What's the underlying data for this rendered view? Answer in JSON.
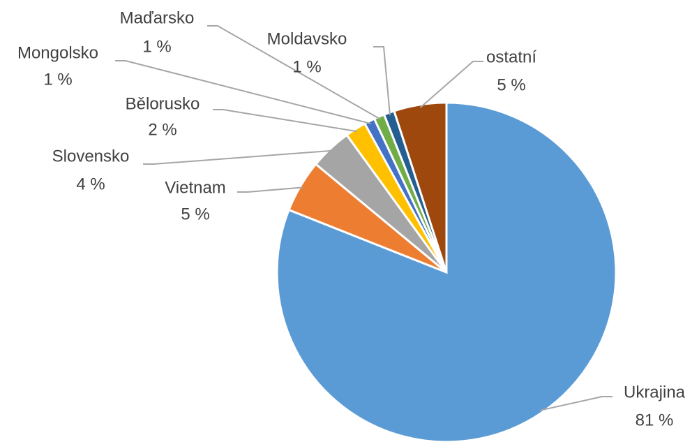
{
  "chart_data": {
    "type": "pie",
    "categories": [
      "Ukrajina",
      "Vietnam",
      "Slovensko",
      "Bělorusko",
      "Mongolsko",
      "Maďarsko",
      "Moldavsko",
      "ostatní"
    ],
    "values": [
      81,
      5,
      4,
      2,
      1,
      1,
      1,
      5
    ],
    "value_labels": [
      "81 %",
      "5 %",
      "4 %",
      "2 %",
      "1 %",
      "1 %",
      "1 %",
      "5 %"
    ],
    "colors": [
      "#5b9bd5",
      "#ed7d31",
      "#a5a5a5",
      "#ffc000",
      "#4472c4",
      "#70ad47",
      "#255e91",
      "#9e480e"
    ]
  }
}
